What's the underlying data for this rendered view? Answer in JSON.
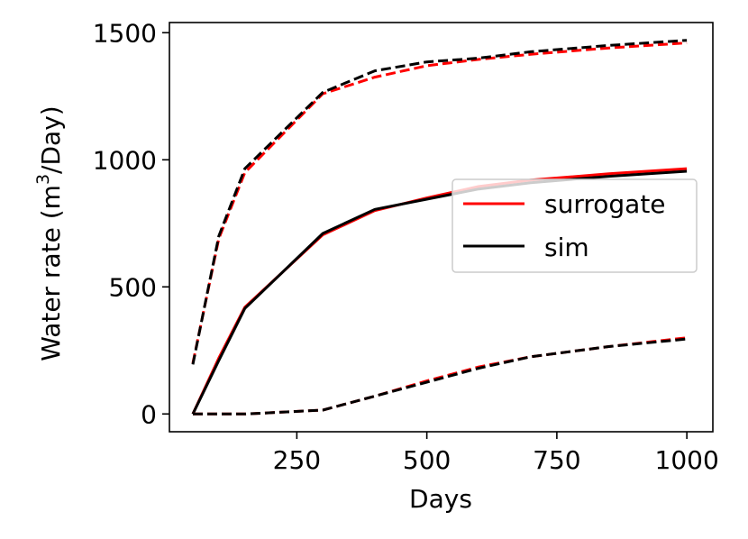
{
  "chart_data": {
    "type": "line",
    "title": "",
    "xlabel": "Days",
    "ylabel_prefix": "Water rate (m",
    "ylabel_sup": "3",
    "ylabel_suffix": "/Day)",
    "xlim": [
      5,
      1050
    ],
    "ylim": [
      -70,
      1540
    ],
    "xticks": [
      250,
      500,
      750,
      1000
    ],
    "xtick_labels": [
      "250",
      "500",
      "750",
      "1000"
    ],
    "yticks": [
      0,
      500,
      1000,
      1500
    ],
    "ytick_labels": [
      "0",
      "500",
      "1000",
      "1500"
    ],
    "legend": {
      "placement": "center-right",
      "entries": [
        {
          "label": "surrogate",
          "color": "#ff0000"
        },
        {
          "label": "sim",
          "color": "#000000"
        }
      ]
    },
    "series": [
      {
        "name": "surrogate-upper",
        "group": "surrogate",
        "color": "#ff0000",
        "style": "dashed",
        "x": [
          50,
          100,
          150,
          300,
          400,
          500,
          600,
          700,
          850,
          1000
        ],
        "y": [
          200,
          690,
          950,
          1260,
          1325,
          1370,
          1395,
          1415,
          1440,
          1460
        ]
      },
      {
        "name": "sim-upper",
        "group": "sim",
        "color": "#000000",
        "style": "dashed",
        "x": [
          50,
          100,
          150,
          300,
          400,
          500,
          600,
          700,
          850,
          1000
        ],
        "y": [
          195,
          700,
          965,
          1265,
          1350,
          1385,
          1400,
          1425,
          1450,
          1470
        ]
      },
      {
        "name": "surrogate-middle",
        "group": "surrogate",
        "color": "#ff0000",
        "style": "solid",
        "x": [
          50,
          100,
          150,
          300,
          400,
          500,
          600,
          700,
          850,
          1000
        ],
        "y": [
          0,
          220,
          420,
          705,
          800,
          850,
          895,
          920,
          945,
          965
        ]
      },
      {
        "name": "sim-middle",
        "group": "sim",
        "color": "#000000",
        "style": "solid",
        "x": [
          50,
          100,
          150,
          300,
          400,
          500,
          600,
          700,
          850,
          1000
        ],
        "y": [
          0,
          210,
          415,
          710,
          805,
          845,
          885,
          910,
          935,
          955
        ]
      },
      {
        "name": "surrogate-lower",
        "group": "surrogate",
        "color": "#ff0000",
        "style": "dashed",
        "x": [
          50,
          150,
          300,
          400,
          500,
          600,
          700,
          850,
          1000
        ],
        "y": [
          0,
          0,
          15,
          70,
          130,
          185,
          225,
          265,
          300
        ]
      },
      {
        "name": "sim-lower",
        "group": "sim",
        "color": "#000000",
        "style": "dashed",
        "x": [
          50,
          150,
          300,
          400,
          500,
          600,
          700,
          850,
          1000
        ],
        "y": [
          0,
          0,
          15,
          70,
          125,
          180,
          225,
          265,
          295
        ]
      }
    ]
  }
}
